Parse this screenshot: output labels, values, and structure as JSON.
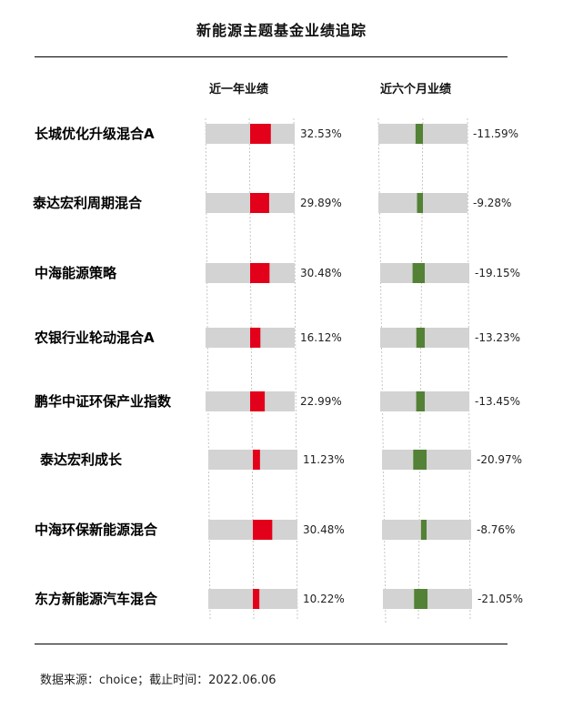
{
  "title": "新能源主题基金业绩追踪",
  "footer": "数据来源：choice；截止时间：2022.06.06",
  "colors": {
    "positive": "#e2001a",
    "negative": "#538135",
    "track": "#d3d3d3",
    "guide": "#b8b8b8"
  },
  "chart_data": {
    "type": "bar",
    "series": [
      {
        "name": "近一年业绩",
        "values": [
          32.53,
          29.89,
          30.48,
          16.12,
          22.99,
          11.23,
          30.48,
          10.22
        ]
      },
      {
        "name": "近六个月业绩",
        "values": [
          -11.59,
          -9.28,
          -19.15,
          -13.23,
          -13.45,
          -20.97,
          -8.76,
          -21.05
        ]
      }
    ],
    "categories": [
      "长城优化升级混合A",
      "泰达宏利周期混合",
      "中海能源策略",
      "农银行业轮动混合A",
      "鹏华中证环保产业指数",
      "泰达宏利成长",
      "中海环保新能源混合",
      "东方新能源汽车混合"
    ],
    "value_labels": [
      [
        "32.53%",
        "29.89%",
        "30.48%",
        "16.12%",
        "22.99%",
        "11.23%",
        "30.48%",
        "10.22%"
      ],
      [
        "-11.59%",
        "-9.28%",
        "-19.15%",
        "-13.23%",
        "-13.45%",
        "-20.97%",
        "-8.76%",
        "-21.05%"
      ]
    ]
  }
}
